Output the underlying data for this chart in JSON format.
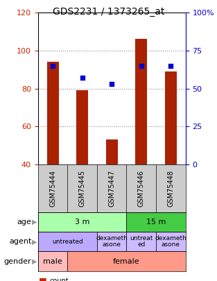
{
  "title": "GDS2231 / 1373265_at",
  "samples": [
    "GSM75444",
    "GSM75445",
    "GSM75447",
    "GSM75446",
    "GSM75448"
  ],
  "counts": [
    94,
    79,
    53,
    106,
    89
  ],
  "percentiles": [
    65,
    57,
    53,
    65,
    65
  ],
  "ylim_left": [
    40,
    120
  ],
  "ylim_right": [
    0,
    100
  ],
  "yticks_left": [
    40,
    60,
    80,
    100,
    120
  ],
  "yticks_right": [
    0,
    25,
    50,
    75,
    100
  ],
  "ytick_labels_right": [
    "0",
    "25",
    "50",
    "75",
    "100%"
  ],
  "bar_color": "#aa2200",
  "dot_color": "#0000cc",
  "bar_width": 0.4,
  "age_spans": [
    {
      "label": "3 m",
      "start": 0,
      "end": 3,
      "color": "#aaffaa"
    },
    {
      "label": "15 m",
      "start": 3,
      "end": 5,
      "color": "#44cc44"
    }
  ],
  "agent_spans": [
    {
      "label": "untreated",
      "start": 0,
      "end": 2,
      "color": "#bbaaff"
    },
    {
      "label": "dexameth\nasone",
      "start": 2,
      "end": 3,
      "color": "#ccbbff"
    },
    {
      "label": "untreat\ned",
      "start": 3,
      "end": 4,
      "color": "#ccbbff"
    },
    {
      "label": "dexameth\nasone",
      "start": 4,
      "end": 5,
      "color": "#ccbbff"
    }
  ],
  "gender_spans": [
    {
      "label": "male",
      "start": 0,
      "end": 1,
      "color": "#ffbbbb"
    },
    {
      "label": "female",
      "start": 1,
      "end": 5,
      "color": "#ff9988"
    }
  ],
  "grid_color": "#888888",
  "bg_color": "#ffffff",
  "title_fontsize": 10,
  "axis_color_left": "#cc2200",
  "axis_color_right": "#0000cc",
  "sample_bg": "#cccccc",
  "legend_bar_color": "#cc2200",
  "legend_dot_color": "#0000cc"
}
